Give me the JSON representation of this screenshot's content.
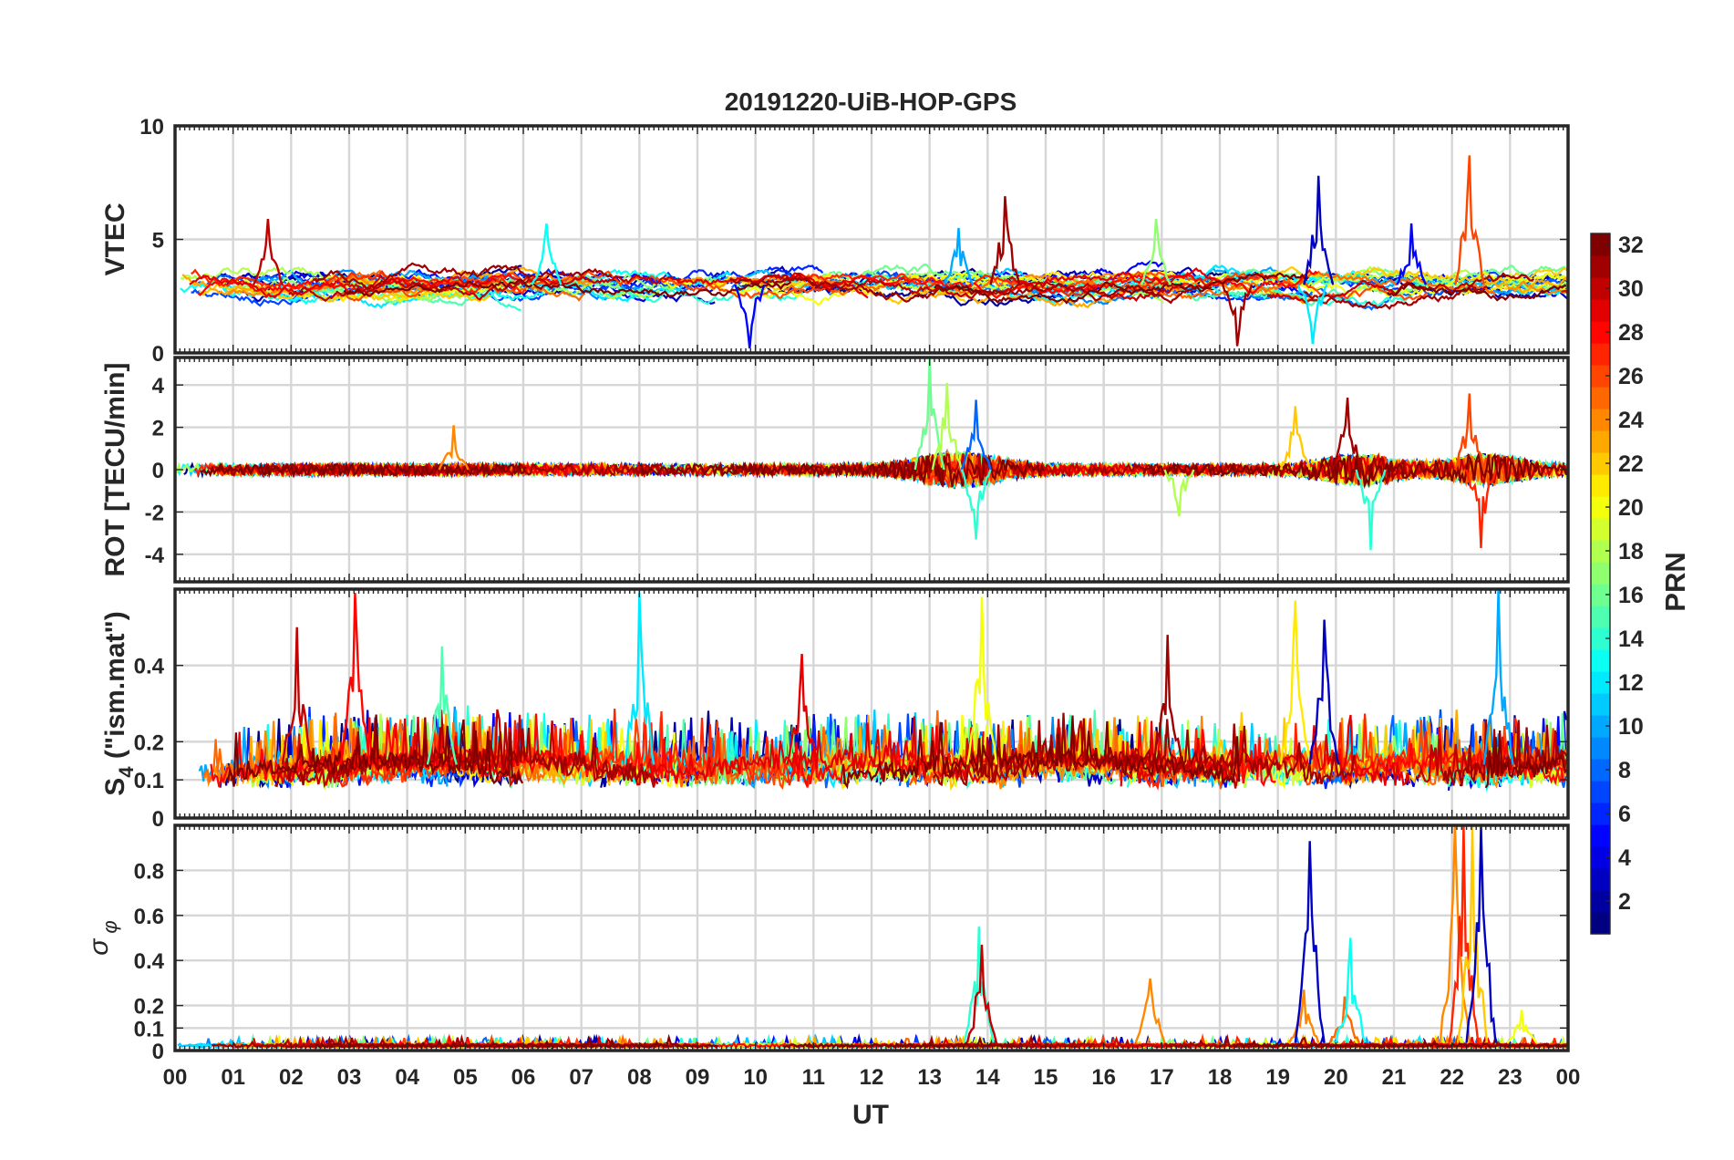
{
  "chart_data": {
    "type": "line",
    "title": "20191220-UiB-HOP-GPS",
    "xlabel": "UT",
    "x_tick_labels": [
      "00",
      "01",
      "02",
      "03",
      "04",
      "05",
      "06",
      "07",
      "08",
      "09",
      "10",
      "11",
      "12",
      "13",
      "14",
      "15",
      "16",
      "17",
      "18",
      "19",
      "20",
      "21",
      "22",
      "23",
      "00"
    ],
    "xlim_hours": [
      0,
      24
    ],
    "panels": [
      {
        "id": "vtec",
        "ylabel": "VTEC",
        "ylim": [
          0,
          10
        ],
        "yticks": [
          0,
          5,
          10
        ],
        "grid": true,
        "baseline": 3.0,
        "noise": 0.9,
        "events": [
          {
            "t": 1.6,
            "v": 5.9,
            "prn": 30
          },
          {
            "t": 6.4,
            "v": 5.7,
            "prn": 13
          },
          {
            "t": 14.3,
            "v": 6.9,
            "prn": 31
          },
          {
            "t": 13.5,
            "v": 5.5,
            "prn": 10
          },
          {
            "t": 16.9,
            "v": 5.9,
            "prn": 17
          },
          {
            "t": 19.7,
            "v": 7.8,
            "prn": 3
          },
          {
            "t": 22.3,
            "v": 8.7,
            "prn": 26
          },
          {
            "t": 21.3,
            "v": 5.7,
            "prn": 5
          },
          {
            "t": 18.3,
            "v": 0.3,
            "prn": 31
          },
          {
            "t": 9.9,
            "v": 0.2,
            "prn": 5
          },
          {
            "t": 19.6,
            "v": 0.4,
            "prn": 12
          }
        ]
      },
      {
        "id": "rot",
        "ylabel": "ROT [TECU/min]",
        "ylim": [
          -5.3,
          5.3
        ],
        "yticks": [
          -4,
          -2,
          0,
          2,
          4
        ],
        "grid": true,
        "baseline": 0.0,
        "noise": 0.25,
        "events": [
          {
            "t": 13.0,
            "v": 5.2,
            "prn": 16
          },
          {
            "t": 13.3,
            "v": 4.1,
            "prn": 18
          },
          {
            "t": 13.8,
            "v": 3.3,
            "prn": 8
          },
          {
            "t": 13.8,
            "v": -3.3,
            "prn": 14
          },
          {
            "t": 19.3,
            "v": 3.0,
            "prn": 22
          },
          {
            "t": 20.2,
            "v": 3.4,
            "prn": 31
          },
          {
            "t": 20.6,
            "v": -3.8,
            "prn": 14
          },
          {
            "t": 22.3,
            "v": 3.6,
            "prn": 26
          },
          {
            "t": 22.5,
            "v": -3.7,
            "prn": 27
          },
          {
            "t": 17.3,
            "v": -2.2,
            "prn": 18
          },
          {
            "t": 4.8,
            "v": 2.1,
            "prn": 24
          }
        ]
      },
      {
        "id": "s4",
        "ylabel": "S4 (\"ism.mat\")",
        "ylabel_main": "S",
        "ylabel_sub": "4",
        "ylabel_rest": " (\"ism.mat\")",
        "ylim": [
          0,
          0.6
        ],
        "yticks": [
          0,
          0.1,
          0.2,
          0.4
        ],
        "grid": true,
        "baseline": 0.12,
        "noise": 0.07,
        "events": [
          {
            "t": 2.1,
            "v": 0.5,
            "prn": 30
          },
          {
            "t": 3.1,
            "v": 0.59,
            "prn": 28
          },
          {
            "t": 8.0,
            "v": 0.59,
            "prn": 12
          },
          {
            "t": 13.9,
            "v": 0.58,
            "prn": 20
          },
          {
            "t": 19.3,
            "v": 0.57,
            "prn": 21
          },
          {
            "t": 22.8,
            "v": 0.6,
            "prn": 10
          },
          {
            "t": 10.8,
            "v": 0.43,
            "prn": 29
          },
          {
            "t": 17.1,
            "v": 0.48,
            "prn": 31
          },
          {
            "t": 19.8,
            "v": 0.52,
            "prn": 3
          },
          {
            "t": 4.6,
            "v": 0.45,
            "prn": 15
          }
        ]
      },
      {
        "id": "sigma",
        "ylabel": "σ φ",
        "ylabel_main": "σ",
        "ylabel_sub": "φ",
        "ylim": [
          0,
          1
        ],
        "yticks": [
          0,
          0.1,
          0.2,
          0.4,
          0.6,
          0.8
        ],
        "grid": true,
        "baseline": 0.015,
        "noise": 0.015,
        "events": [
          {
            "t": 13.85,
            "v": 0.55,
            "prn": 14
          },
          {
            "t": 13.9,
            "v": 0.47,
            "prn": 30
          },
          {
            "t": 16.8,
            "v": 0.32,
            "prn": 24
          },
          {
            "t": 19.45,
            "v": 0.27,
            "prn": 24
          },
          {
            "t": 19.55,
            "v": 0.93,
            "prn": 3
          },
          {
            "t": 20.15,
            "v": 0.24,
            "prn": 25
          },
          {
            "t": 20.25,
            "v": 0.5,
            "prn": 13
          },
          {
            "t": 22.05,
            "v": 1.0,
            "prn": 24
          },
          {
            "t": 22.2,
            "v": 1.0,
            "prn": 27
          },
          {
            "t": 22.35,
            "v": 1.0,
            "prn": 22
          },
          {
            "t": 22.5,
            "v": 1.0,
            "prn": 3
          },
          {
            "t": 23.2,
            "v": 0.18,
            "prn": 20
          }
        ]
      }
    ],
    "colorbar": {
      "label": "PRN",
      "range": [
        1,
        32
      ],
      "tick_labels": [
        "2",
        "4",
        "6",
        "8",
        "10",
        "12",
        "14",
        "16",
        "18",
        "20",
        "22",
        "24",
        "26",
        "28",
        "30",
        "32"
      ],
      "tick_values": [
        2,
        4,
        6,
        8,
        10,
        12,
        14,
        16,
        18,
        20,
        22,
        24,
        26,
        28,
        30,
        32
      ],
      "colormap": "jet"
    },
    "series_prn": [
      1,
      2,
      3,
      4,
      5,
      6,
      7,
      8,
      9,
      10,
      11,
      12,
      13,
      14,
      15,
      16,
      17,
      18,
      19,
      20,
      21,
      22,
      23,
      24,
      25,
      26,
      27,
      28,
      29,
      30,
      31,
      32
    ]
  }
}
